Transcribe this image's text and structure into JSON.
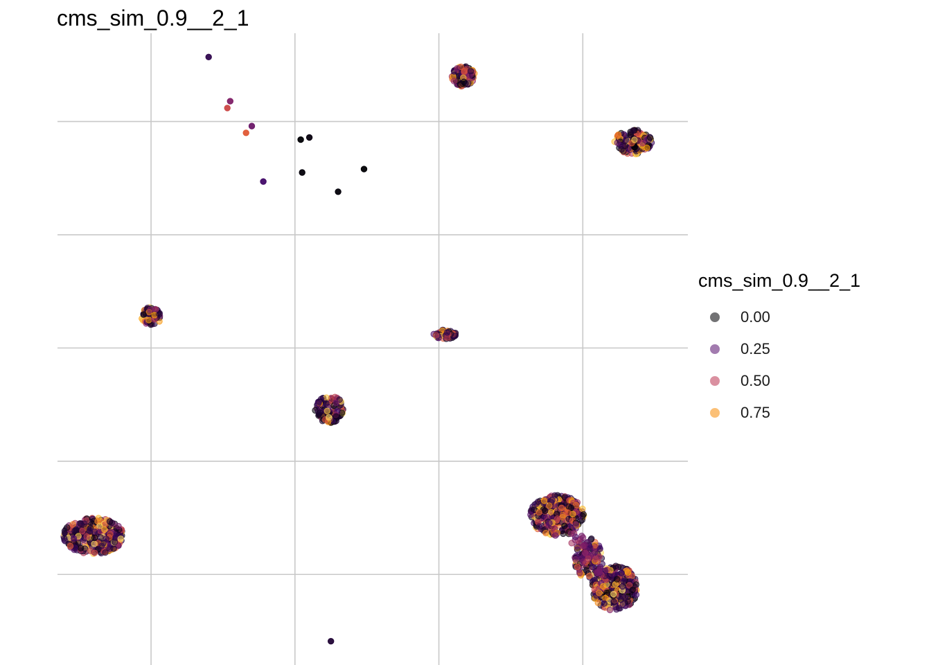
{
  "chart_data": {
    "type": "scatter",
    "title": "cms_sim_0.9__2_1",
    "xlabel": "",
    "ylabel": "",
    "grid": true,
    "legend_placement": "right",
    "legend": {
      "title": "cms_sim_0.9__2_1",
      "entries": [
        {
          "label": "0.00",
          "value": 0.0,
          "color": "#000004"
        },
        {
          "label": "0.25",
          "value": 0.25,
          "color": "#57106e"
        },
        {
          "label": "0.50",
          "value": 0.5,
          "color": "#bc3754"
        },
        {
          "label": "0.75",
          "value": 0.75,
          "color": "#f98e09"
        }
      ]
    },
    "x_gridlines": [
      -2,
      -1,
      0,
      1
    ],
    "y_gridlines": [
      2,
      1,
      0,
      -1,
      -2
    ],
    "xlim": [
      -2.65,
      1.73
    ],
    "ylim": [
      -2.8,
      2.78
    ],
    "palette": [
      "#000004",
      "#420a68",
      "#932667",
      "#dd513a",
      "#fca50a",
      "#fcffa4"
    ],
    "point_opacity": 0.55,
    "clusters": [
      {
        "x": 0.17,
        "y": 2.4,
        "rx": 0.08,
        "ry": 0.09,
        "n": 130
      },
      {
        "x": 1.35,
        "y": 1.82,
        "rx": 0.13,
        "ry": 0.11,
        "n": 160
      },
      {
        "x": -2.0,
        "y": 0.28,
        "rx": 0.07,
        "ry": 0.08,
        "n": 70
      },
      {
        "x": 0.04,
        "y": 0.12,
        "rx": 0.08,
        "ry": 0.04,
        "n": 60
      },
      {
        "x": -0.76,
        "y": -0.54,
        "rx": 0.1,
        "ry": 0.12,
        "n": 110
      },
      {
        "x": -2.4,
        "y": -1.66,
        "rx": 0.21,
        "ry": 0.16,
        "n": 320
      },
      {
        "x": 0.82,
        "y": -1.48,
        "rx": 0.19,
        "ry": 0.18,
        "n": 340
      },
      {
        "x": 1.22,
        "y": -2.12,
        "rx": 0.16,
        "ry": 0.2,
        "n": 300
      },
      {
        "x": 1.04,
        "y": -1.86,
        "rx": 0.1,
        "ry": 0.18,
        "n": 110
      }
    ],
    "single_points": [
      {
        "x": -1.6,
        "y": 2.57,
        "value": 0.15
      },
      {
        "x": -1.45,
        "y": 2.18,
        "value": 0.35
      },
      {
        "x": -1.47,
        "y": 2.12,
        "value": 0.55
      },
      {
        "x": -1.3,
        "y": 1.96,
        "value": 0.3
      },
      {
        "x": -1.34,
        "y": 1.9,
        "value": 0.62
      },
      {
        "x": -0.96,
        "y": 1.84,
        "value": 0.0
      },
      {
        "x": -0.9,
        "y": 1.86,
        "value": 0.02
      },
      {
        "x": -0.95,
        "y": 1.55,
        "value": 0.01
      },
      {
        "x": -0.52,
        "y": 1.58,
        "value": 0.0
      },
      {
        "x": -0.7,
        "y": 1.38,
        "value": 0.01
      },
      {
        "x": -1.22,
        "y": 1.47,
        "value": 0.2
      },
      {
        "x": -0.75,
        "y": -2.59,
        "value": 0.1
      }
    ]
  }
}
